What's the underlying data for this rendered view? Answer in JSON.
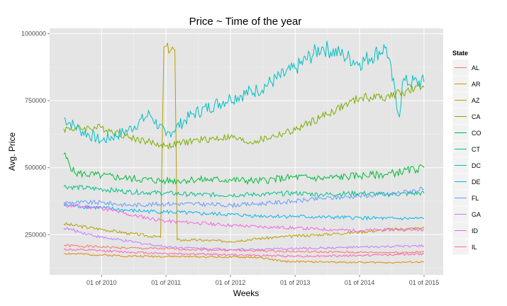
{
  "chart_data": {
    "type": "line",
    "title": "Price ~ Time of the year",
    "xlabel": "Weeks",
    "ylabel": "Avg. Price",
    "x_start": "2009-06-01",
    "x_end": "2015-01-01",
    "xticks": [
      "01 of 2010",
      "01 of 2011",
      "01 of 2012",
      "01 of 2013",
      "01 of 2014",
      "01 of 2015"
    ],
    "xtick_dates": [
      "2010-01-01",
      "2011-01-01",
      "2012-01-01",
      "2013-01-01",
      "2014-01-01",
      "2015-01-01"
    ],
    "ylim": [
      100000,
      1020000
    ],
    "yticks": [
      250000,
      500000,
      750000,
      1000000
    ],
    "ytick_labels": [
      "250000",
      "500000",
      "750000",
      "1000000"
    ],
    "grid": true,
    "legend": {
      "title": "State",
      "position": "right"
    },
    "background": "#e5e5e5",
    "series": [
      {
        "name": "AL",
        "color": "#F8766D",
        "anchors": [
          [
            "2009-06-01",
            210000
          ],
          [
            "2010-06-01",
            200000
          ],
          [
            "2011-06-01",
            195000
          ],
          [
            "2012-06-01",
            190000
          ],
          [
            "2013-06-01",
            185000
          ],
          [
            "2014-06-01",
            183000
          ],
          [
            "2015-01-01",
            185000
          ]
        ]
      },
      {
        "name": "AR",
        "color": "#DE8C00",
        "anchors": [
          [
            "2009-06-01",
            180000
          ],
          [
            "2010-06-01",
            170000
          ],
          [
            "2011-06-01",
            168000
          ],
          [
            "2012-06-01",
            165000
          ],
          [
            "2012-11-01",
            150000
          ],
          [
            "2013-06-01",
            148000
          ],
          [
            "2014-06-01",
            146000
          ],
          [
            "2015-01-01",
            148000
          ]
        ]
      },
      {
        "name": "AZ",
        "color": "#B79F00",
        "anchors": [
          [
            "2009-06-01",
            290000
          ],
          [
            "2010-01-01",
            270000
          ],
          [
            "2010-06-01",
            255000
          ],
          [
            "2010-12-01",
            240000
          ],
          [
            "2010-12-20",
            950000
          ],
          [
            "2011-02-20",
            940000
          ],
          [
            "2011-03-05",
            230000
          ],
          [
            "2011-06-01",
            230000
          ],
          [
            "2012-01-01",
            225000
          ],
          [
            "2012-06-01",
            235000
          ],
          [
            "2013-01-01",
            245000
          ],
          [
            "2013-06-01",
            250000
          ],
          [
            "2014-01-01",
            260000
          ],
          [
            "2014-06-01",
            268000
          ],
          [
            "2015-01-01",
            275000
          ]
        ]
      },
      {
        "name": "CA",
        "color": "#7CAE00",
        "anchors": [
          [
            "2009-06-01",
            645000
          ],
          [
            "2010-01-01",
            650000
          ],
          [
            "2010-06-01",
            615000
          ],
          [
            "2011-01-01",
            580000
          ],
          [
            "2011-06-01",
            600000
          ],
          [
            "2012-01-01",
            615000
          ],
          [
            "2012-04-01",
            595000
          ],
          [
            "2012-06-01",
            600000
          ],
          [
            "2013-01-01",
            640000
          ],
          [
            "2013-06-01",
            690000
          ],
          [
            "2014-01-01",
            760000
          ],
          [
            "2014-06-01",
            765000
          ],
          [
            "2015-01-01",
            800000
          ]
        ]
      },
      {
        "name": "CO",
        "color": "#00BA38",
        "anchors": [
          [
            "2009-06-01",
            550000
          ],
          [
            "2009-08-01",
            480000
          ],
          [
            "2010-01-01",
            470000
          ],
          [
            "2010-06-01",
            460000
          ],
          [
            "2011-01-01",
            450000
          ],
          [
            "2011-06-01",
            455000
          ],
          [
            "2012-01-01",
            455000
          ],
          [
            "2012-06-01",
            450000
          ],
          [
            "2013-01-01",
            465000
          ],
          [
            "2013-06-01",
            460000
          ],
          [
            "2014-01-01",
            470000
          ],
          [
            "2014-06-01",
            475000
          ],
          [
            "2015-01-01",
            500000
          ]
        ]
      },
      {
        "name": "CT",
        "color": "#00C08B",
        "anchors": [
          [
            "2009-06-01",
            430000
          ],
          [
            "2010-01-01",
            420000
          ],
          [
            "2010-06-01",
            410000
          ],
          [
            "2011-01-01",
            405000
          ],
          [
            "2011-06-01",
            400000
          ],
          [
            "2012-01-01",
            398000
          ],
          [
            "2012-06-01",
            400000
          ],
          [
            "2013-01-01",
            405000
          ],
          [
            "2013-06-01",
            400000
          ],
          [
            "2014-01-01",
            405000
          ],
          [
            "2014-06-01",
            400000
          ],
          [
            "2015-01-01",
            405000
          ]
        ]
      },
      {
        "name": "DC",
        "color": "#00BFC4",
        "anchors": [
          [
            "2009-06-01",
            685000
          ],
          [
            "2009-09-01",
            640000
          ],
          [
            "2010-01-01",
            600000
          ],
          [
            "2010-06-01",
            640000
          ],
          [
            "2010-10-01",
            700000
          ],
          [
            "2011-01-01",
            620000
          ],
          [
            "2011-06-01",
            700000
          ],
          [
            "2012-01-01",
            760000
          ],
          [
            "2012-06-01",
            790000
          ],
          [
            "2013-01-01",
            870000
          ],
          [
            "2013-06-01",
            950000
          ],
          [
            "2013-10-01",
            920000
          ],
          [
            "2014-01-01",
            890000
          ],
          [
            "2014-06-01",
            950000
          ],
          [
            "2014-08-15",
            690000
          ],
          [
            "2014-09-01",
            820000
          ],
          [
            "2015-01-01",
            820000
          ]
        ]
      },
      {
        "name": "DE",
        "color": "#00B4F0",
        "anchors": [
          [
            "2009-06-01",
            360000
          ],
          [
            "2010-01-01",
            350000
          ],
          [
            "2010-06-01",
            340000
          ],
          [
            "2011-01-01",
            335000
          ],
          [
            "2011-06-01",
            330000
          ],
          [
            "2012-01-01",
            325000
          ],
          [
            "2012-06-01",
            320000
          ],
          [
            "2013-01-01",
            318000
          ],
          [
            "2013-06-01",
            315000
          ],
          [
            "2014-01-01",
            313000
          ],
          [
            "2014-06-01",
            310000
          ],
          [
            "2015-01-01",
            310000
          ]
        ]
      },
      {
        "name": "FL",
        "color": "#619CFF",
        "anchors": [
          [
            "2009-06-01",
            370000
          ],
          [
            "2010-01-01",
            370000
          ],
          [
            "2010-06-01",
            360000
          ],
          [
            "2011-01-01",
            365000
          ],
          [
            "2011-06-01",
            365000
          ],
          [
            "2012-01-01",
            360000
          ],
          [
            "2012-06-01",
            365000
          ],
          [
            "2013-01-01",
            375000
          ],
          [
            "2013-06-01",
            385000
          ],
          [
            "2014-01-01",
            395000
          ],
          [
            "2014-06-01",
            400000
          ],
          [
            "2015-01-01",
            420000
          ]
        ]
      },
      {
        "name": "GA",
        "color": "#C77CFF",
        "anchors": [
          [
            "2009-06-01",
            275000
          ],
          [
            "2010-01-01",
            240000
          ],
          [
            "2010-06-01",
            225000
          ],
          [
            "2011-01-01",
            205000
          ],
          [
            "2011-06-01",
            200000
          ],
          [
            "2012-01-01",
            195000
          ],
          [
            "2012-06-01",
            195000
          ],
          [
            "2013-01-01",
            198000
          ],
          [
            "2013-06-01",
            200000
          ],
          [
            "2014-01-01",
            203000
          ],
          [
            "2014-06-01",
            205000
          ],
          [
            "2015-01-01",
            208000
          ]
        ]
      },
      {
        "name": "ID",
        "color": "#F564E3",
        "anchors": [
          [
            "2009-06-01",
            360000
          ],
          [
            "2010-01-01",
            350000
          ],
          [
            "2010-06-01",
            325000
          ],
          [
            "2011-01-01",
            300000
          ],
          [
            "2011-06-01",
            295000
          ],
          [
            "2012-01-01",
            285000
          ],
          [
            "2012-06-01",
            280000
          ],
          [
            "2013-01-01",
            275000
          ],
          [
            "2013-06-01",
            270000
          ],
          [
            "2014-01-01",
            265000
          ],
          [
            "2014-06-01",
            268000
          ],
          [
            "2015-01-01",
            270000
          ]
        ]
      },
      {
        "name": "IL",
        "color": "#FF64B0",
        "anchors": [
          [
            "2009-06-01",
            195000
          ],
          [
            "2010-01-01",
            190000
          ],
          [
            "2010-06-01",
            185000
          ],
          [
            "2011-01-01",
            180000
          ],
          [
            "2011-06-01",
            178000
          ],
          [
            "2012-01-01",
            175000
          ],
          [
            "2012-06-01",
            172000
          ],
          [
            "2013-01-01",
            170000
          ],
          [
            "2013-06-01",
            170000
          ],
          [
            "2014-01-01",
            172000
          ],
          [
            "2014-06-01",
            175000
          ],
          [
            "2015-01-01",
            178000
          ]
        ]
      }
    ]
  }
}
